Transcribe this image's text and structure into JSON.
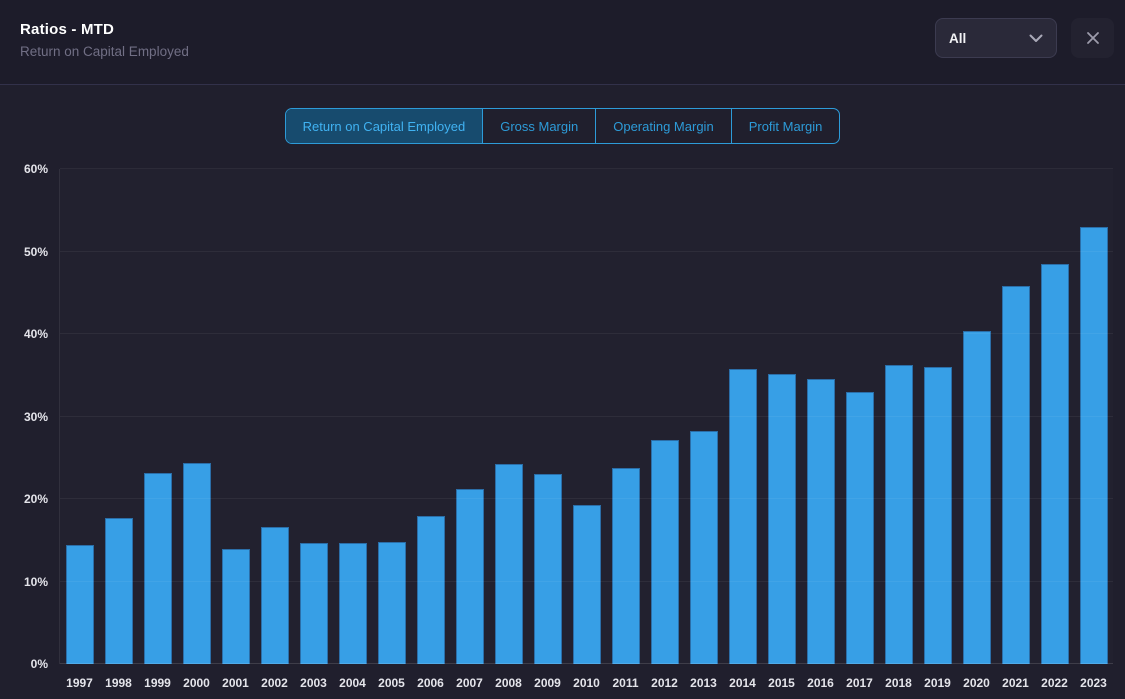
{
  "window": {
    "title": "Ratios - MTD",
    "subtitle": "Return on Capital Employed"
  },
  "controls": {
    "filter": {
      "selected": "All"
    },
    "close": "close"
  },
  "tabs": [
    {
      "label": "Return on Capital Employed",
      "active": true
    },
    {
      "label": "Gross Margin",
      "active": false
    },
    {
      "label": "Operating Margin",
      "active": false
    },
    {
      "label": "Profit Margin",
      "active": false
    }
  ],
  "colors": {
    "background": "#201f2d",
    "header_background": "#1d1c2a",
    "accent": "#2d9bd8",
    "active_tab_background": "#174b6e",
    "active_tab_text": "#40b2f2",
    "bar_fill": "#379fe6",
    "bar_border": "#2b6ea8",
    "axis_text": "#e4e4ea"
  },
  "chart_data": {
    "type": "bar",
    "title": "Return on Capital Employed",
    "unit": "%",
    "categories": [
      "1997",
      "1998",
      "1999",
      "2000",
      "2001",
      "2002",
      "2003",
      "2004",
      "2005",
      "2006",
      "2007",
      "2008",
      "2009",
      "2010",
      "2011",
      "2012",
      "2013",
      "2014",
      "2015",
      "2016",
      "2017",
      "2018",
      "2019",
      "2020",
      "2021",
      "2022",
      "2023"
    ],
    "values": [
      14.4,
      17.7,
      23.1,
      24.4,
      14.0,
      16.6,
      14.7,
      14.7,
      14.8,
      17.9,
      21.2,
      24.2,
      23.0,
      19.3,
      23.7,
      27.2,
      28.2,
      35.8,
      35.2,
      34.6,
      33.0,
      36.2,
      36.0,
      40.4,
      45.8,
      48.5,
      53.0
    ],
    "xlabel": "",
    "ylabel": "",
    "ylim": [
      0,
      60
    ],
    "yticks": [
      "0%",
      "10%",
      "20%",
      "30%",
      "40%",
      "50%",
      "60%"
    ],
    "grid": true,
    "legend_position": "none"
  }
}
